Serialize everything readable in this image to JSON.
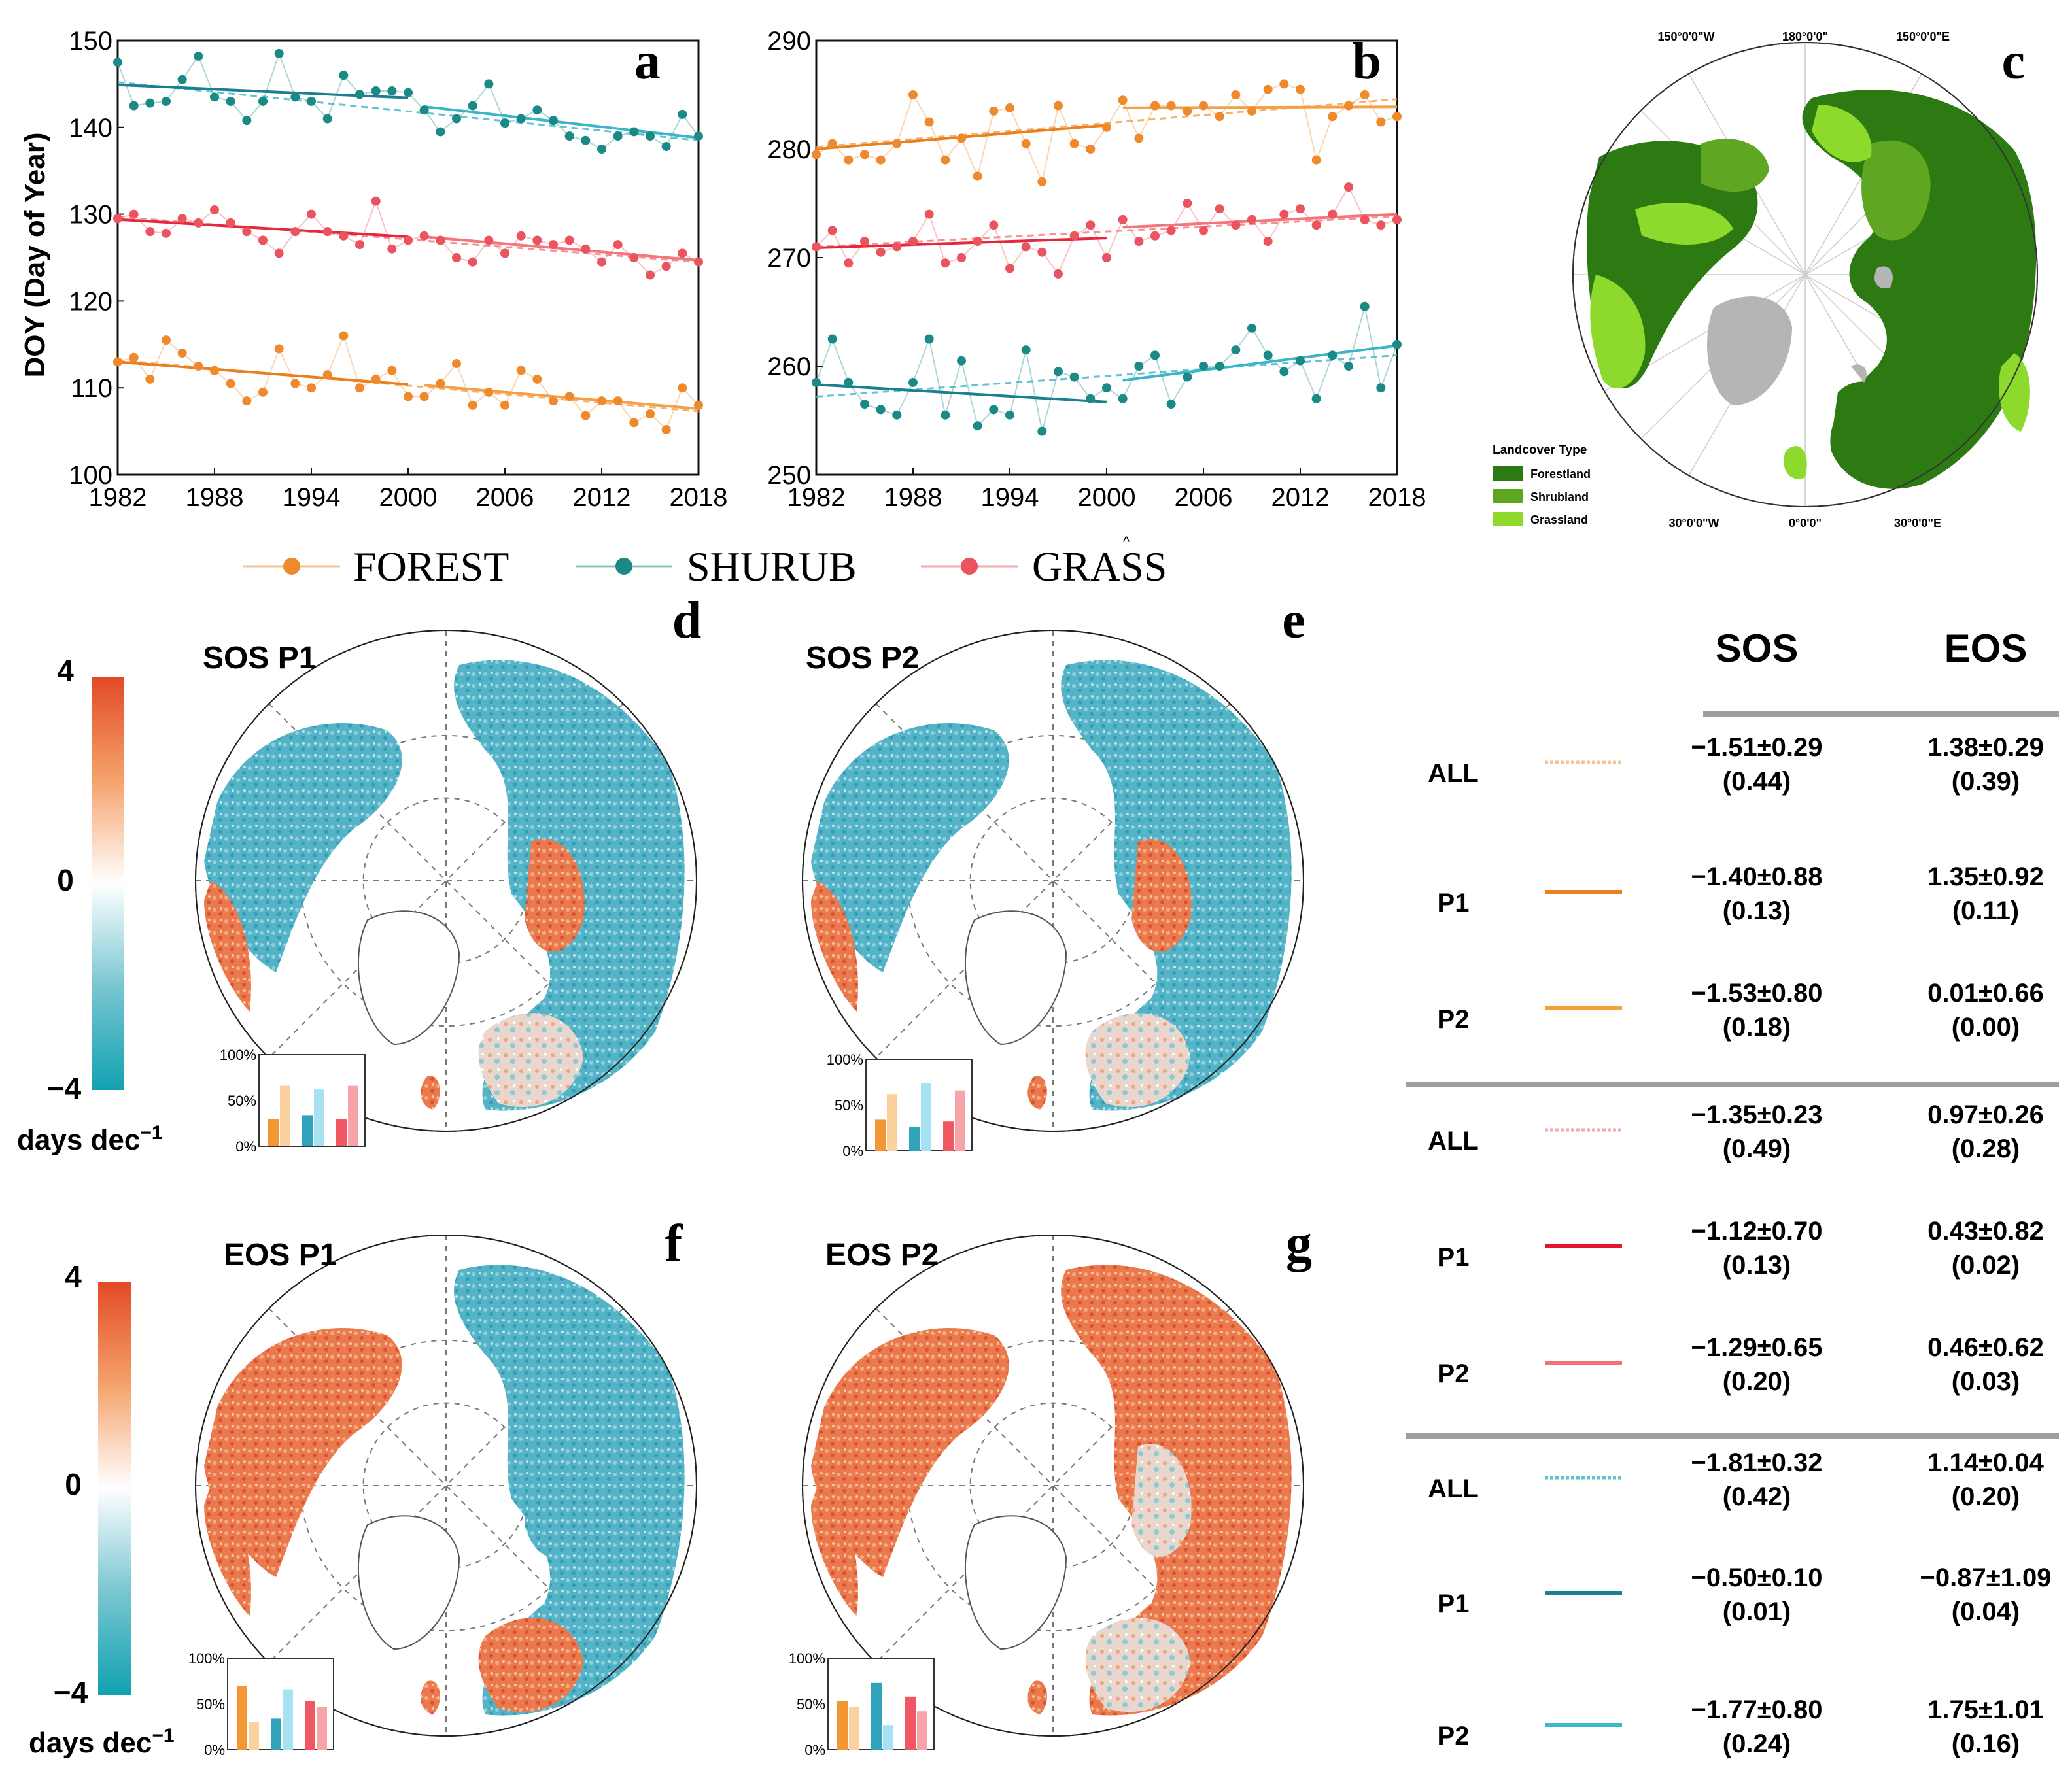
{
  "chart_data": [
    {
      "id": "a",
      "type": "line",
      "panel_label": "a",
      "ylabel": "DOY (Day of Year)",
      "ylim": [
        100,
        150
      ],
      "yticks": [
        100,
        110,
        120,
        130,
        140,
        150
      ],
      "xticks": [
        1982,
        1988,
        1994,
        2000,
        2006,
        2012,
        2018
      ],
      "x": [
        1982,
        1983,
        1984,
        1985,
        1986,
        1987,
        1988,
        1989,
        1990,
        1991,
        1992,
        1993,
        1994,
        1995,
        1996,
        1997,
        1998,
        1999,
        2000,
        2001,
        2002,
        2003,
        2004,
        2005,
        2006,
        2007,
        2008,
        2009,
        2010,
        2011,
        2012,
        2013,
        2014,
        2015,
        2016,
        2017,
        2018
      ],
      "series": [
        {
          "name": "SHURUB",
          "color": "#1b8a87",
          "p1_color": "#1c7f8f",
          "p2_color": "#3ab6c8",
          "values": [
            147.5,
            142.5,
            142.8,
            143.0,
            145.5,
            148.2,
            143.5,
            143.0,
            140.8,
            143.0,
            148.5,
            143.5,
            143.0,
            141.0,
            146.0,
            143.8,
            144.2,
            144.2,
            144.0,
            142.0,
            139.5,
            141.0,
            142.5,
            145.0,
            140.5,
            141.0,
            142.0,
            140.8,
            139.0,
            138.5,
            137.5,
            139.0,
            139.5,
            139.0,
            137.8,
            141.5,
            139.0
          ],
          "p1_fit": [
            144.9,
            143.4
          ],
          "p2_fit": [
            142.4,
            138.8
          ],
          "all_fit": [
            145.2,
            138.5
          ]
        },
        {
          "name": "GRASS",
          "color": "#e9545e",
          "p1_color": "#e5283d",
          "p2_color": "#f4767d",
          "values": [
            129.5,
            130.0,
            128.0,
            127.8,
            129.5,
            129.0,
            130.5,
            129.0,
            128.0,
            127.0,
            125.5,
            128.0,
            130.0,
            128.0,
            127.5,
            126.5,
            131.5,
            126.0,
            127.0,
            127.5,
            127.0,
            125.0,
            124.5,
            127.0,
            125.5,
            127.5,
            127.0,
            126.5,
            127.0,
            126.0,
            124.5,
            126.5,
            125.0,
            123.0,
            124.0,
            125.5,
            124.5
          ],
          "p1_fit": [
            129.4,
            127.4
          ],
          "p2_fit": [
            127.4,
            124.7
          ],
          "all_fit": [
            129.7,
            124.5
          ]
        },
        {
          "name": "FOREST",
          "color": "#ef8a2c",
          "p1_color": "#e88020",
          "p2_color": "#f5a048",
          "values": [
            113.0,
            113.5,
            111.0,
            115.5,
            114.0,
            112.5,
            112.0,
            110.5,
            108.5,
            109.5,
            114.5,
            110.5,
            110.0,
            111.5,
            116.0,
            110.0,
            111.0,
            112.0,
            109.0,
            109.0,
            110.5,
            112.8,
            108.0,
            109.5,
            108.0,
            112.0,
            111.0,
            108.5,
            109.0,
            106.8,
            108.5,
            108.5,
            106.0,
            107.0,
            105.2,
            110.0,
            108.0
          ],
          "p1_fit": [
            113.0,
            110.4
          ],
          "p2_fit": [
            110.3,
            107.6
          ],
          "all_fit": [
            113.2,
            107.3
          ]
        }
      ]
    },
    {
      "id": "b",
      "type": "line",
      "panel_label": "b",
      "ylabel": "",
      "ylim": [
        250,
        290
      ],
      "yticks": [
        250,
        260,
        270,
        280,
        290
      ],
      "xticks": [
        1982,
        1988,
        1994,
        2000,
        2006,
        2012,
        2018
      ],
      "x": [
        1982,
        1983,
        1984,
        1985,
        1986,
        1987,
        1988,
        1989,
        1990,
        1991,
        1992,
        1993,
        1994,
        1995,
        1996,
        1997,
        1998,
        1999,
        2000,
        2001,
        2002,
        2003,
        2004,
        2005,
        2006,
        2007,
        2008,
        2009,
        2010,
        2011,
        2012,
        2013,
        2014,
        2015,
        2016,
        2017,
        2018
      ],
      "series": [
        {
          "name": "FOREST",
          "color": "#ef8a2c",
          "p1_color": "#e88020",
          "p2_color": "#f5a048",
          "values": [
            279.5,
            280.5,
            279.0,
            279.5,
            279.0,
            280.5,
            285.0,
            282.5,
            279.0,
            281.0,
            277.5,
            283.5,
            283.8,
            280.5,
            277.0,
            284.0,
            280.5,
            280.0,
            282.0,
            284.5,
            281.0,
            284.0,
            284.0,
            283.5,
            284.0,
            283.0,
            285.0,
            283.5,
            285.5,
            286.0,
            285.5,
            279.0,
            283.0,
            284.0,
            285.0,
            282.5,
            283.0
          ],
          "p1_fit": [
            280.0,
            282.2
          ],
          "p2_fit": [
            283.8,
            283.9
          ],
          "all_fit": [
            280.2,
            284.6
          ]
        },
        {
          "name": "GRASS",
          "color": "#e9545e",
          "p1_color": "#e5283d",
          "p2_color": "#f4767d",
          "values": [
            271.0,
            272.5,
            269.5,
            271.5,
            270.5,
            271.0,
            271.5,
            274.0,
            269.5,
            270.0,
            271.5,
            273.0,
            269.0,
            271.0,
            270.5,
            268.5,
            272.0,
            273.0,
            270.0,
            273.5,
            271.5,
            272.0,
            272.5,
            275.0,
            272.5,
            274.5,
            273.0,
            273.5,
            271.5,
            274.0,
            274.5,
            273.0,
            274.0,
            276.5,
            273.5,
            273.0,
            273.5
          ],
          "p1_fit": [
            270.9,
            271.8
          ],
          "p2_fit": [
            272.8,
            274.0
          ],
          "all_fit": [
            271.0,
            273.8
          ]
        },
        {
          "name": "SHURUB",
          "color": "#1b8a87",
          "p1_color": "#1c7f8f",
          "p2_color": "#3ab6c8",
          "values": [
            258.5,
            262.5,
            258.5,
            256.5,
            256.0,
            255.5,
            258.5,
            262.5,
            255.5,
            260.5,
            254.5,
            256.0,
            255.5,
            261.5,
            254.0,
            259.5,
            259.0,
            257.0,
            258.0,
            257.0,
            260.0,
            261.0,
            256.5,
            259.0,
            260.0,
            260.0,
            261.5,
            263.5,
            261.0,
            259.5,
            260.5,
            257.0,
            261.0,
            260.0,
            265.5,
            258.0,
            262.0
          ],
          "p1_fit": [
            258.3,
            256.7
          ],
          "p2_fit": [
            258.7,
            261.9
          ],
          "all_fit": [
            257.2,
            261.0
          ]
        }
      ]
    }
  ],
  "legend": {
    "forest": "FOREST",
    "shrub": "SHURUB",
    "grass": "GRASS",
    "caret": "^"
  },
  "map_c": {
    "panel_label": "c",
    "top_labels": [
      "150°0'0\"W",
      "180°0'0\"",
      "150°0'0\"E"
    ],
    "bottom_labels": [
      "30°0'0\"W",
      "0°0'0\"",
      "30°0'0\"E"
    ],
    "legend_title": "Landcover Type",
    "legend_items": [
      {
        "label": "Forestland",
        "color": "#2d7a12"
      },
      {
        "label": "Shrubland",
        "color": "#5fa622"
      },
      {
        "label": "Grassland",
        "color": "#8dda2c"
      }
    ]
  },
  "maps": [
    {
      "panel": "d",
      "title": "SOS P1",
      "bars": [
        {
          "label": "FOREST",
          "p": [
            30,
            66
          ]
        },
        {
          "label": "SHURUB",
          "p": [
            34,
            62
          ]
        },
        {
          "label": "GRASS",
          "p": [
            30,
            66
          ]
        }
      ]
    },
    {
      "panel": "e",
      "title": "SOS P2",
      "bars": [
        {
          "label": "FOREST",
          "p": [
            34,
            62
          ]
        },
        {
          "label": "SHURUB",
          "p": [
            26,
            74
          ]
        },
        {
          "label": "GRASS",
          "p": [
            32,
            66
          ]
        }
      ]
    },
    {
      "panel": "f",
      "title": "EOS P1",
      "bars": [
        {
          "label": "FOREST",
          "p": [
            70,
            30
          ]
        },
        {
          "label": "SHURUB",
          "p": [
            34,
            66
          ]
        },
        {
          "label": "GRASS",
          "p": [
            53,
            47
          ]
        }
      ]
    },
    {
      "panel": "g",
      "title": "EOS P2",
      "bars": [
        {
          "label": "FOREST",
          "p": [
            53,
            47
          ]
        },
        {
          "label": "SHURUB",
          "p": [
            73,
            27
          ]
        },
        {
          "label": "GRASS",
          "p": [
            58,
            42
          ]
        }
      ]
    }
  ],
  "inset_ticks": [
    "100%",
    "50%",
    "0%"
  ],
  "colorbars": [
    {
      "max": "4",
      "mid": "0",
      "min": "−4",
      "unit": "days dec",
      "unit_sup": "−1"
    },
    {
      "max": "4",
      "mid": "0",
      "min": "−4",
      "unit": "days dec",
      "unit_sup": "−1"
    }
  ],
  "table": {
    "headers": {
      "sos": "SOS",
      "eos": "EOS"
    },
    "groups": [
      {
        "rows": [
          {
            "label": "ALL",
            "line": "dotted",
            "color": "#f3c59a",
            "sos": "−1.51±0.29",
            "sos_r": "(0.44)",
            "eos": "1.38±0.29",
            "eos_r": "(0.39)"
          },
          {
            "label": "P1",
            "line": "solid",
            "color": "#e87f20",
            "sos": "−1.40±0.88",
            "sos_r": "(0.13)",
            "eos": "1.35±0.92",
            "eos_r": "(0.11)"
          },
          {
            "label": "P2",
            "line": "solid",
            "color": "#f5a038",
            "sos": "−1.53±0.80",
            "sos_r": "(0.18)",
            "eos": "0.01±0.66",
            "eos_r": "(0.00)"
          }
        ]
      },
      {
        "rows": [
          {
            "label": "ALL",
            "line": "dotted",
            "color": "#f5aaae",
            "sos": "−1.35±0.23",
            "sos_r": "(0.49)",
            "eos": "0.97±0.26",
            "eos_r": "(0.28)"
          },
          {
            "label": "P1",
            "line": "solid",
            "color": "#e2162f",
            "sos": "−1.12±0.70",
            "sos_r": "(0.13)",
            "eos": "0.43±0.82",
            "eos_r": "(0.02)"
          },
          {
            "label": "P2",
            "line": "solid",
            "color": "#f46f78",
            "sos": "−1.29±0.65",
            "sos_r": "(0.20)",
            "eos": "0.46±0.62",
            "eos_r": "(0.03)"
          }
        ]
      },
      {
        "rows": [
          {
            "label": "ALL",
            "line": "dotted",
            "color": "#5cc4cc",
            "sos": "−1.81±0.32",
            "sos_r": "(0.42)",
            "eos": "1.14±0.04",
            "eos_r": "(0.20)"
          },
          {
            "label": "P1",
            "line": "solid",
            "color": "#1c8091",
            "sos": "−0.50±0.10",
            "sos_r": "(0.01)",
            "eos": "−0.87±1.09",
            "eos_r": "(0.04)"
          },
          {
            "label": "P2",
            "line": "solid",
            "color": "#3ab8cc",
            "sos": "−1.77±0.80",
            "sos_r": "(0.24)",
            "eos": "1.75±1.01",
            "eos_r": "(0.16)"
          }
        ]
      }
    ]
  }
}
